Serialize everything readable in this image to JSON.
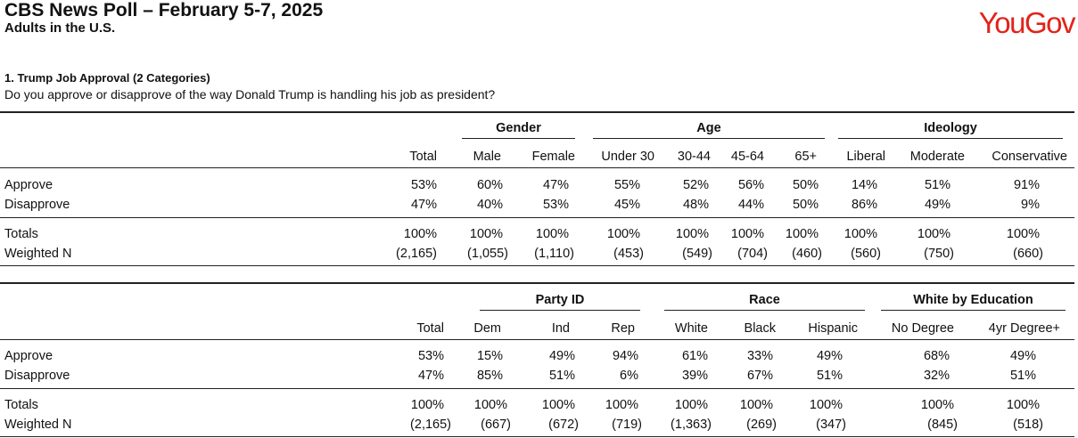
{
  "header": {
    "title": "CBS News Poll – February 5-7, 2025",
    "subtitle": "Adults in the U.S.",
    "logo_text": "YouGov",
    "logo_color": "#e2231a"
  },
  "question": {
    "number_title": "1. Trump Job Approval (2 Categories)",
    "text": "Do you approve or disapprove of the way Donald Trump is handling his job as president?"
  },
  "table1": {
    "groups": [
      "Gender",
      "Age",
      "Ideology"
    ],
    "columns": [
      "Total",
      "Male",
      "Female",
      "Under 30",
      "30-44",
      "45-64",
      "65+",
      "Liberal",
      "Moderate",
      "Conservative"
    ],
    "rows": [
      {
        "label": "Approve",
        "values": [
          "53%",
          "60%",
          "47%",
          "55%",
          "52%",
          "56%",
          "50%",
          "14%",
          "51%",
          "91%"
        ]
      },
      {
        "label": "Disapprove",
        "values": [
          "47%",
          "40%",
          "53%",
          "45%",
          "48%",
          "44%",
          "50%",
          "86%",
          "49%",
          "9%"
        ]
      },
      {
        "label": "Totals",
        "values": [
          "100%",
          "100%",
          "100%",
          "100%",
          "100%",
          "100%",
          "100%",
          "100%",
          "100%",
          "100%"
        ]
      },
      {
        "label": "Weighted N",
        "values": [
          "(2,165)",
          "(1,055)",
          "(1,110)",
          "(453)",
          "(549)",
          "(704)",
          "(460)",
          "(560)",
          "(750)",
          "(660)"
        ]
      }
    ]
  },
  "table2": {
    "groups": [
      "Party ID",
      "Race",
      "White by Education"
    ],
    "columns": [
      "Total",
      "Dem",
      "Ind",
      "Rep",
      "White",
      "Black",
      "Hispanic",
      "No Degree",
      "4yr Degree+"
    ],
    "rows": [
      {
        "label": "Approve",
        "values": [
          "53%",
          "15%",
          "49%",
          "94%",
          "61%",
          "33%",
          "49%",
          "68%",
          "49%"
        ]
      },
      {
        "label": "Disapprove",
        "values": [
          "47%",
          "85%",
          "51%",
          "6%",
          "39%",
          "67%",
          "51%",
          "32%",
          "51%"
        ]
      },
      {
        "label": "Totals",
        "values": [
          "100%",
          "100%",
          "100%",
          "100%",
          "100%",
          "100%",
          "100%",
          "100%",
          "100%"
        ]
      },
      {
        "label": "Weighted N",
        "values": [
          "(2,165)",
          "(667)",
          "(672)",
          "(719)",
          "(1,363)",
          "(269)",
          "(347)",
          "(845)",
          "(518)"
        ]
      }
    ]
  }
}
